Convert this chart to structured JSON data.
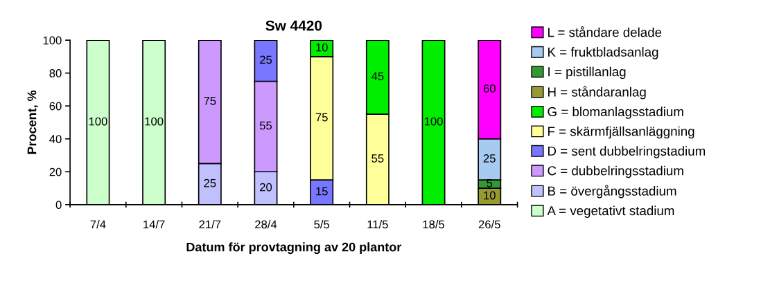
{
  "chart_data": {
    "type": "bar",
    "title": "Sw 4420",
    "xlabel": "Datum för provtagning av 20 plantor",
    "ylabel": "Procent, %",
    "categories": [
      "7/4",
      "14/7",
      "21/7",
      "28/4",
      "5/5",
      "11/5",
      "18/5",
      "26/5"
    ],
    "stacked": true,
    "data_labels": true,
    "legend": "right",
    "grid": false,
    "ylim": [
      0,
      100
    ],
    "yticks": [
      0,
      20,
      40,
      60,
      80,
      100
    ],
    "series": [
      {
        "name": "A = vegetativt stadium",
        "color": "#ccffcc",
        "values": [
          100,
          100,
          null,
          null,
          null,
          null,
          null,
          null
        ]
      },
      {
        "name": "B = övergångsstadium",
        "color": "#c0c0ff",
        "values": [
          null,
          null,
          25,
          20,
          null,
          null,
          null,
          null
        ]
      },
      {
        "name": "C = dubbelringsstadium",
        "color": "#cc99ff",
        "values": [
          null,
          null,
          75,
          55,
          null,
          null,
          null,
          null
        ]
      },
      {
        "name": "D = sent dubbelringstadium",
        "color": "#7777ff",
        "values": [
          null,
          null,
          null,
          25,
          15,
          null,
          null,
          null
        ]
      },
      {
        "name": "F = skärmfjällsanläggning",
        "color": "#ffff99",
        "values": [
          null,
          null,
          null,
          null,
          75,
          55,
          null,
          null
        ]
      },
      {
        "name": "G = blomanlagsstadium",
        "color": "#00ee00",
        "values": [
          null,
          null,
          null,
          null,
          10,
          45,
          100,
          null
        ]
      },
      {
        "name": "H = ståndaranlag",
        "color": "#999933",
        "values": [
          null,
          null,
          null,
          null,
          null,
          null,
          null,
          10
        ]
      },
      {
        "name": "I = pistillanlag",
        "color": "#339933",
        "values": [
          null,
          null,
          null,
          null,
          null,
          null,
          null,
          5
        ]
      },
      {
        "name": "K = fruktbladsanlag",
        "color": "#a6caf0",
        "values": [
          null,
          null,
          null,
          null,
          null,
          null,
          null,
          25
        ]
      },
      {
        "name": "L = ståndare delade",
        "color": "#ff00ff",
        "values": [
          null,
          null,
          null,
          null,
          null,
          null,
          null,
          60
        ]
      }
    ]
  }
}
